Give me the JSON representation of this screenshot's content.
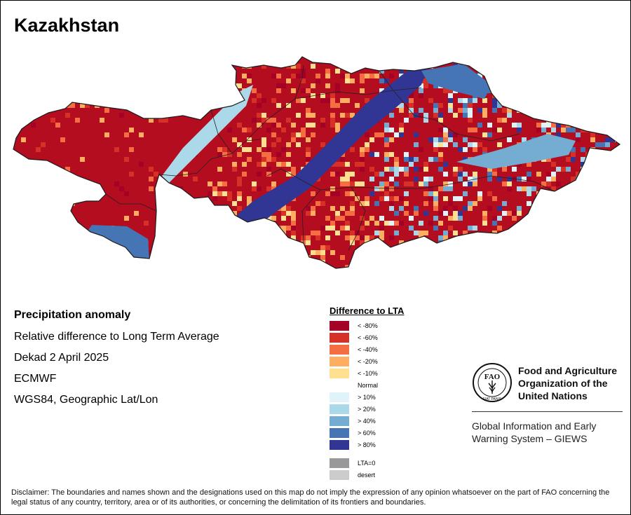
{
  "title": "Kazakhstan",
  "info": {
    "heading": "Precipitation anomaly",
    "lines": [
      "Relative difference to Long Term Average",
      "Dekad 2 April 2025",
      "ECMWF",
      "WGS84, Geographic Lat/Lon"
    ]
  },
  "legend": {
    "title": "Difference to LTA",
    "items": [
      {
        "label": "< -80%",
        "color": "#a50026"
      },
      {
        "label": "< -60%",
        "color": "#d73027"
      },
      {
        "label": "< -40%",
        "color": "#f46d43"
      },
      {
        "label": "< -20%",
        "color": "#fdae61"
      },
      {
        "label": "< -10%",
        "color": "#fee090"
      },
      {
        "label": "Normal",
        "color": "#ffffff"
      },
      {
        "label": "> 10%",
        "color": "#e0f3f8"
      },
      {
        "label": "> 20%",
        "color": "#abd9e9"
      },
      {
        "label": "> 40%",
        "color": "#74add1"
      },
      {
        "label": "> 60%",
        "color": "#4575b4"
      },
      {
        "label": "> 80%",
        "color": "#313695"
      }
    ],
    "extra": [
      {
        "label": "LTA=0",
        "color": "#999999"
      },
      {
        "label": "desert",
        "color": "#cccccc"
      }
    ]
  },
  "fao": {
    "emblem_text": "FAO",
    "motto": "FIAT PANIS",
    "organization": "Food and Agriculture\nOrganization of the\nUnited Nations",
    "giews": "Global Information and Early\nWarning System – GIEWS"
  },
  "disclaimer": "Disclaimer: The boundaries and names shown and the designations used on this map do not imply the expression of any opinion whatsoever on the part of FAO concerning the legal status of any country, territory, area or of its authorities, or concerning the delimitation of its frontiers and boundaries."
}
